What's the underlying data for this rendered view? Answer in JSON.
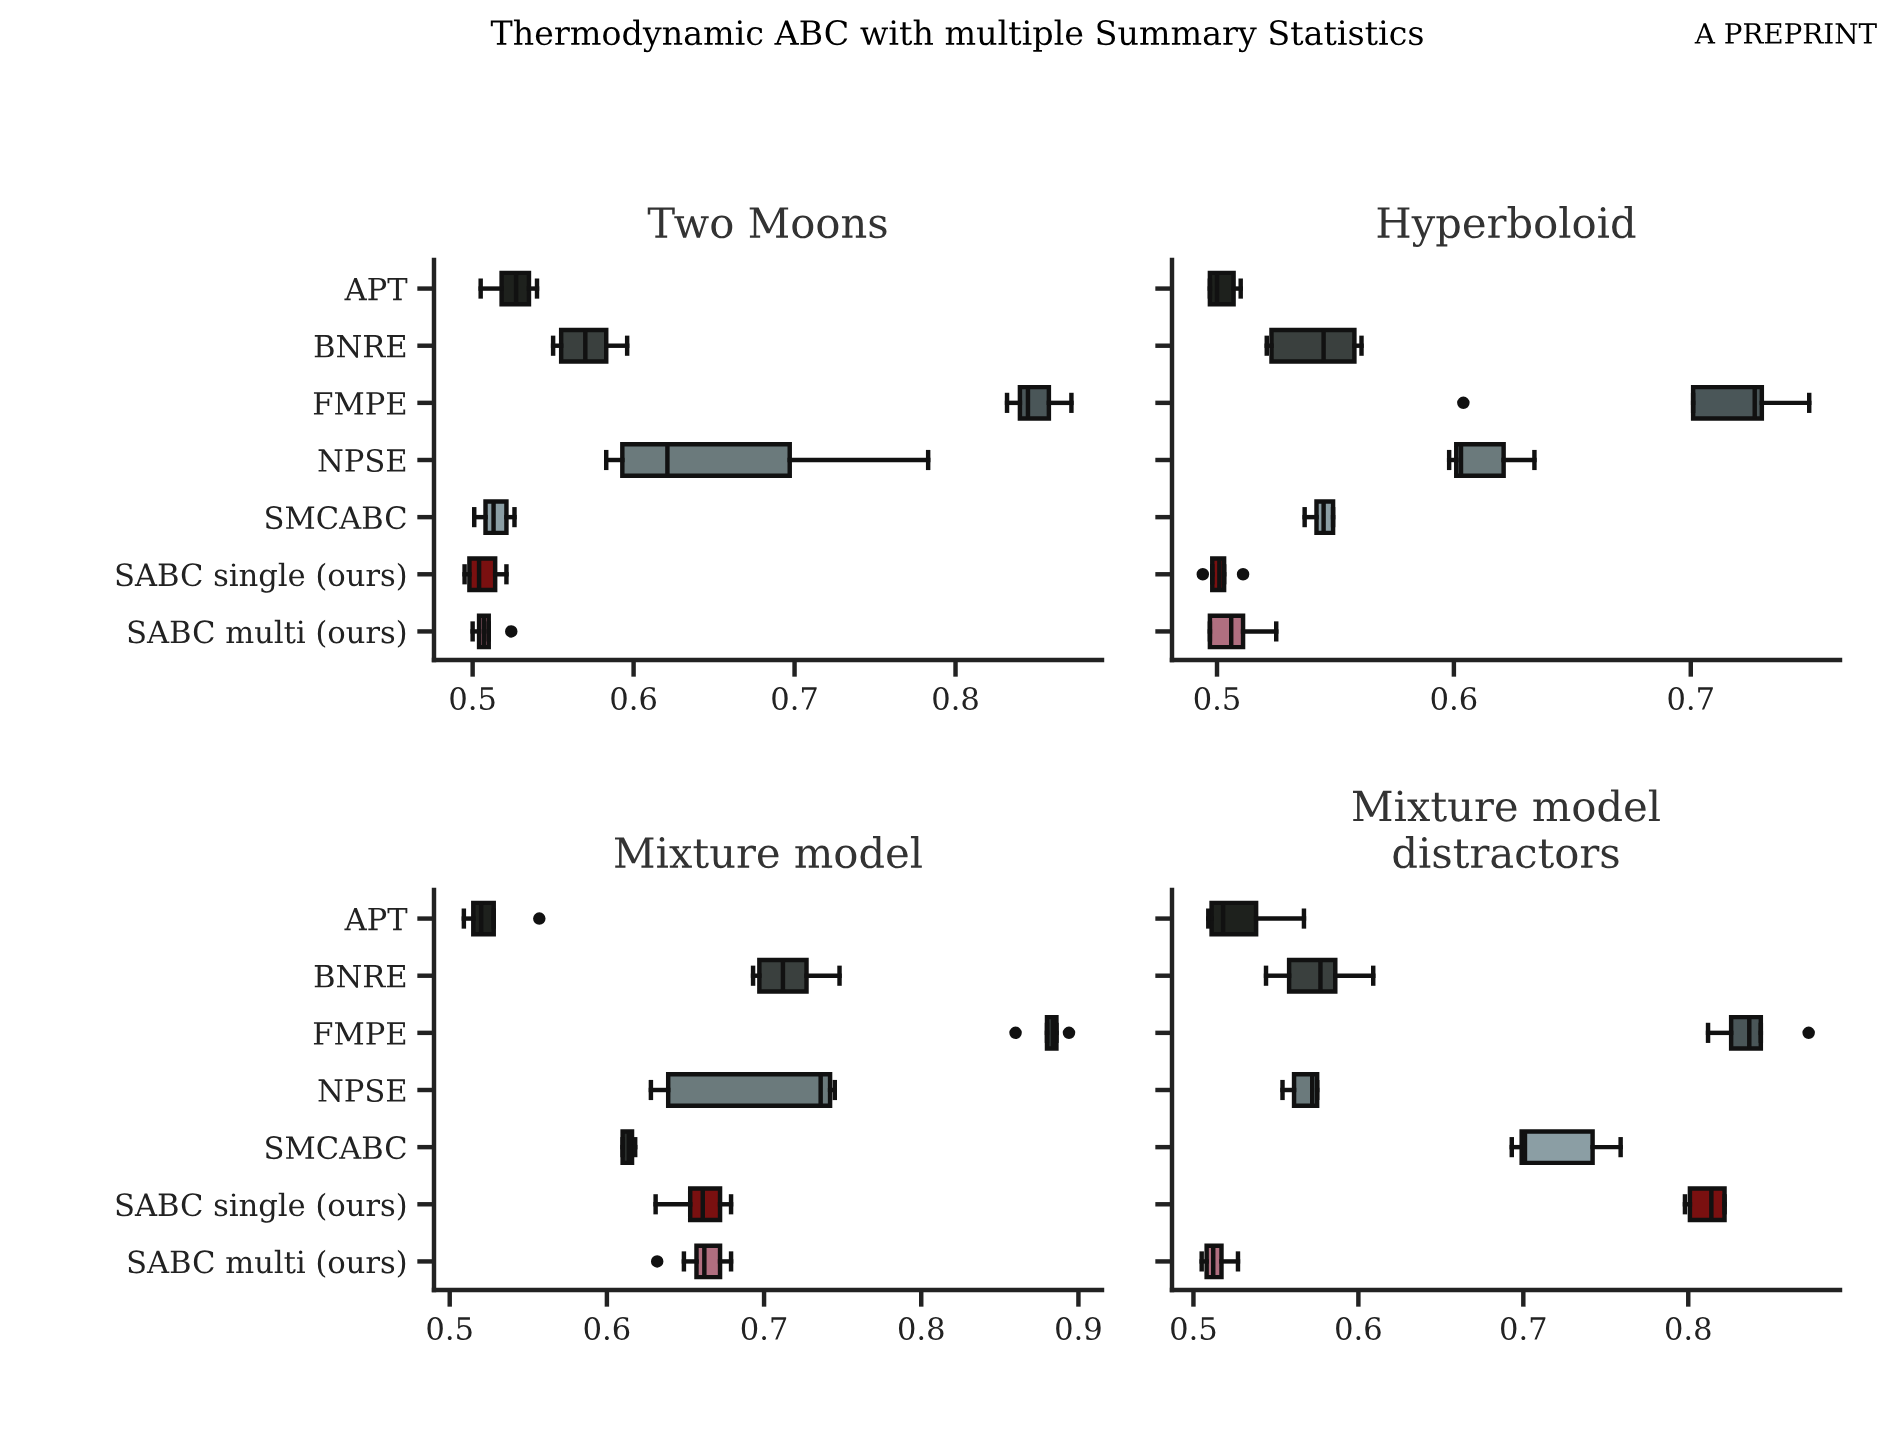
{
  "chart_data": [
    {
      "type": "box",
      "title": "Two Moons",
      "orientation": "horizontal",
      "annotations": [
        "Thermodynamic ABC with multiple Summary Statistics",
        "A PREPRINT"
      ],
      "categories": [
        "APT",
        "BNRE",
        "FMPE",
        "NPSE",
        "SMCABC",
        "SABC single (ours)",
        "SABC multi (ours)"
      ],
      "colors": [
        "#1e211d",
        "#3a403e",
        "#4a5658",
        "#6b7a7c",
        "#8b9ea4",
        "#7a1010",
        "#b06f80"
      ],
      "boxes": [
        {
          "low": 0.505,
          "q1": 0.518,
          "median": 0.527,
          "q3": 0.535,
          "high": 0.54
        },
        {
          "low": 0.55,
          "q1": 0.555,
          "median": 0.57,
          "q3": 0.583,
          "high": 0.596
        },
        {
          "low": 0.832,
          "q1": 0.84,
          "median": 0.845,
          "q3": 0.858,
          "high": 0.872
        },
        {
          "low": 0.583,
          "q1": 0.593,
          "median": 0.621,
          "q3": 0.697,
          "high": 0.783
        },
        {
          "low": 0.501,
          "q1": 0.508,
          "median": 0.513,
          "q3": 0.521,
          "high": 0.526
        },
        {
          "low": 0.495,
          "q1": 0.498,
          "median": 0.504,
          "q3": 0.514,
          "high": 0.521
        },
        {
          "low": 0.5,
          "q1": 0.504,
          "median": 0.507,
          "q3": 0.51,
          "high": 0.51,
          "outliers": [
            0.524
          ]
        }
      ],
      "xlim": [
        0.476,
        0.891
      ],
      "xticks": [
        0.5,
        0.6,
        0.7,
        0.8
      ],
      "grid": false
    },
    {
      "type": "box",
      "title": "Hyperboloid",
      "orientation": "horizontal",
      "categories": [
        null,
        null,
        null,
        null,
        null,
        null,
        null
      ],
      "colors": [
        "#1e211d",
        "#3a403e",
        "#4a5658",
        "#6b7a7c",
        "#8b9ea4",
        "#7a1010",
        "#b06f80"
      ],
      "boxes": [
        {
          "low": 0.497,
          "q1": 0.497,
          "median": 0.5,
          "q3": 0.507,
          "high": 0.51
        },
        {
          "low": 0.521,
          "q1": 0.523,
          "median": 0.545,
          "q3": 0.558,
          "high": 0.561
        },
        {
          "low": 0.701,
          "q1": 0.701,
          "median": 0.727,
          "q3": 0.73,
          "high": 0.75,
          "outliers": [
            0.604
          ]
        },
        {
          "low": 0.598,
          "q1": 0.601,
          "median": 0.603,
          "q3": 0.621,
          "high": 0.634
        },
        {
          "low": 0.537,
          "q1": 0.542,
          "median": 0.545,
          "q3": 0.549,
          "high": 0.549
        },
        {
          "low": 0.498,
          "q1": 0.498,
          "median": 0.501,
          "q3": 0.503,
          "high": 0.503,
          "outliers": [
            0.494,
            0.511
          ]
        },
        {
          "low": 0.497,
          "q1": 0.497,
          "median": 0.506,
          "q3": 0.511,
          "high": 0.525
        }
      ],
      "xlim": [
        0.481,
        0.763
      ],
      "xticks": [
        0.5,
        0.6,
        0.7
      ],
      "grid": false
    },
    {
      "type": "box",
      "title": "Mixture model",
      "orientation": "horizontal",
      "categories": [
        "APT",
        "BNRE",
        "FMPE",
        "NPSE",
        "SMCABC",
        "SABC single (ours)",
        "SABC multi (ours)"
      ],
      "colors": [
        "#1e211d",
        "#3a403e",
        "#2c3231",
        "#6b7a7c",
        "#2a2e2c",
        "#7a1010",
        "#b06f80"
      ],
      "boxes": [
        {
          "low": 0.509,
          "q1": 0.515,
          "median": 0.52,
          "q3": 0.528,
          "high": 0.528,
          "outliers": [
            0.557
          ]
        },
        {
          "low": 0.693,
          "q1": 0.697,
          "median": 0.712,
          "q3": 0.727,
          "high": 0.748
        },
        {
          "low": 0.88,
          "q1": 0.88,
          "median": 0.884,
          "q3": 0.886,
          "high": 0.886,
          "outliers": [
            0.86,
            0.894
          ]
        },
        {
          "low": 0.628,
          "q1": 0.639,
          "median": 0.736,
          "q3": 0.742,
          "high": 0.745
        },
        {
          "low": 0.61,
          "q1": 0.61,
          "median": 0.614,
          "q3": 0.616,
          "high": 0.618
        },
        {
          "low": 0.631,
          "q1": 0.653,
          "median": 0.661,
          "q3": 0.672,
          "high": 0.679
        },
        {
          "low": 0.649,
          "q1": 0.657,
          "median": 0.662,
          "q3": 0.672,
          "high": 0.679,
          "outliers": [
            0.632
          ]
        }
      ],
      "xlim": [
        0.49,
        0.915
      ],
      "xticks": [
        0.5,
        0.6,
        0.7,
        0.8,
        0.9
      ],
      "grid": false
    },
    {
      "type": "box",
      "title": "Mixture model\ndistractors",
      "orientation": "horizontal",
      "categories": [
        null,
        null,
        null,
        null,
        null,
        null,
        null
      ],
      "colors": [
        "#1e211d",
        "#3a403e",
        "#4a5658",
        "#6b7a7c",
        "#8b9ea4",
        "#7a1010",
        "#b06f80"
      ],
      "boxes": [
        {
          "low": 0.509,
          "q1": 0.511,
          "median": 0.518,
          "q3": 0.538,
          "high": 0.567
        },
        {
          "low": 0.544,
          "q1": 0.558,
          "median": 0.577,
          "q3": 0.586,
          "high": 0.609
        },
        {
          "low": 0.812,
          "q1": 0.826,
          "median": 0.837,
          "q3": 0.844,
          "high": 0.844,
          "outliers": [
            0.873
          ]
        },
        {
          "low": 0.554,
          "q1": 0.561,
          "median": 0.572,
          "q3": 0.575,
          "high": 0.575
        },
        {
          "low": 0.693,
          "q1": 0.699,
          "median": 0.701,
          "q3": 0.742,
          "high": 0.759
        },
        {
          "low": 0.798,
          "q1": 0.801,
          "median": 0.814,
          "q3": 0.822,
          "high": 0.822
        },
        {
          "low": 0.505,
          "q1": 0.508,
          "median": 0.512,
          "q3": 0.517,
          "high": 0.527
        }
      ],
      "xlim": [
        0.487,
        0.892
      ],
      "xticks": [
        0.5,
        0.6,
        0.7,
        0.8
      ],
      "grid": false
    }
  ]
}
